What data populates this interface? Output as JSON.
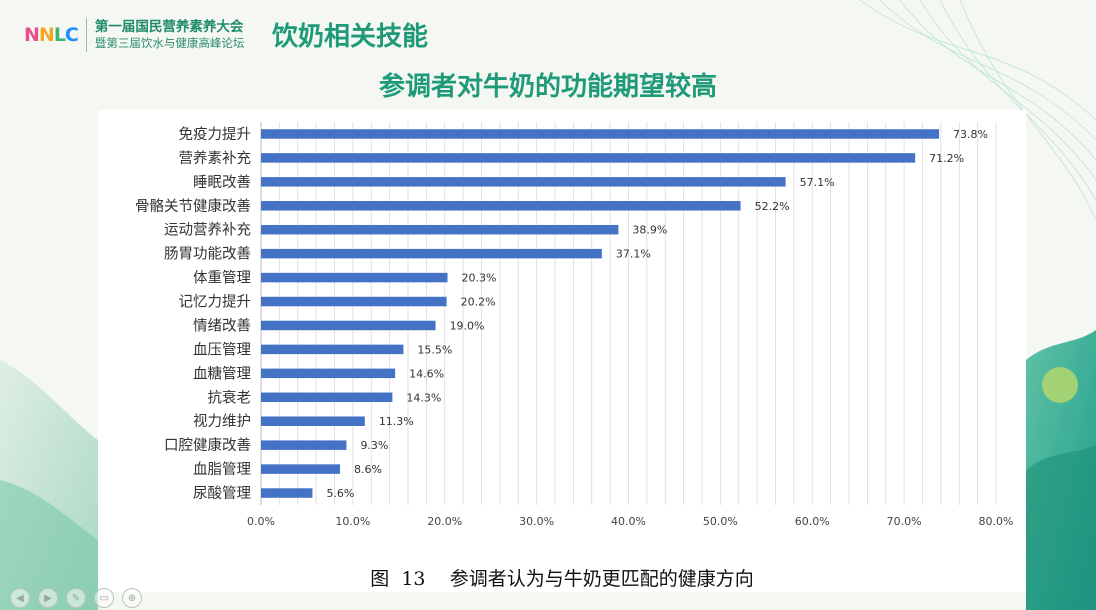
{
  "header": {
    "logo_text": "NNLC",
    "conference_line1": "第一届国民营养素养大会",
    "conference_line2": "暨第三届饮水与健康高峰论坛",
    "page_title": "饮奶相关技能",
    "subtitle": "参调者对牛奶的功能期望较高"
  },
  "colors": {
    "accent": "#1e9a78",
    "bar": "#4472c4",
    "logo_colors": [
      "#e94e8a",
      "#f5a623",
      "#3cb371",
      "#1e90ff"
    ]
  },
  "nav_icons": [
    "prev-icon",
    "next-icon",
    "edit-icon",
    "menu-icon",
    "zoom-icon"
  ],
  "caption": {
    "figure_label": "图  13",
    "text": "参调者认为与牛奶更匹配的健康方向"
  },
  "chart_data": {
    "type": "bar",
    "orientation": "horizontal",
    "categories": [
      "免疫力提升",
      "营养素补充",
      "睡眠改善",
      "骨骼关节健康改善",
      "运动营养补充",
      "肠胃功能改善",
      "体重管理",
      "记忆力提升",
      "情绪改善",
      "血压管理",
      "血糖管理",
      "抗衰老",
      "视力维护",
      "口腔健康改善",
      "血脂管理",
      "尿酸管理"
    ],
    "values": [
      73.8,
      71.2,
      57.1,
      52.2,
      38.9,
      37.1,
      20.3,
      20.2,
      19.0,
      15.5,
      14.6,
      14.3,
      11.3,
      9.3,
      8.6,
      5.6
    ],
    "value_labels": [
      "73.8%",
      "71.2%",
      "57.1%",
      "52.2%",
      "38.9%",
      "37.1%",
      "20.3%",
      "20.2%",
      "19.0%",
      "15.5%",
      "14.6%",
      "14.3%",
      "11.3%",
      "9.3%",
      "8.6%",
      "5.6%"
    ],
    "x_ticks": [
      0,
      10,
      20,
      30,
      40,
      50,
      60,
      70,
      80
    ],
    "x_tick_labels": [
      "0.0%",
      "10.0%",
      "20.0%",
      "30.0%",
      "40.0%",
      "50.0%",
      "60.0%",
      "70.0%",
      "80.0%"
    ],
    "xlim": [
      0,
      80
    ],
    "grid": "vertical-minor",
    "bar_color": "#4472c4"
  }
}
